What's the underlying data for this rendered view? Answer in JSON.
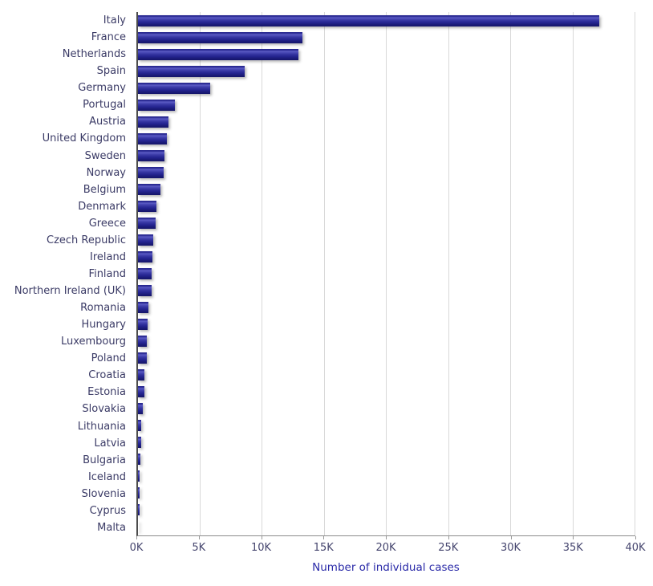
{
  "colors": {
    "bar_color": "#23238e",
    "bar_highlight": "#5c5cc4",
    "category_label_color": "#3b3b66",
    "tick_label_color": "#45456e",
    "axis_title_color": "#2a2aa8",
    "gridline_color": "#d9d9d9",
    "background": "#ffffff"
  },
  "chart_data": {
    "type": "bar",
    "orientation": "horizontal",
    "title": "",
    "xlabel": "Number of individual cases",
    "ylabel": "",
    "xlim": [
      0,
      40000
    ],
    "grid": true,
    "legend": false,
    "x_ticks": [
      "0K",
      "5K",
      "10K",
      "15K",
      "20K",
      "25K",
      "30K",
      "35K",
      "40K"
    ],
    "x_tick_values": [
      0,
      5000,
      10000,
      15000,
      20000,
      25000,
      30000,
      35000,
      40000
    ],
    "categories": [
      "Italy",
      "France",
      "Netherlands",
      "Spain",
      "Germany",
      "Portugal",
      "Austria",
      "United Kingdom",
      "Sweden",
      "Norway",
      "Belgium",
      "Denmark",
      "Greece",
      "Czech Republic",
      "Ireland",
      "Finland",
      "Northern Ireland (UK)",
      "Romania",
      "Hungary",
      "Luxembourg",
      "Poland",
      "Croatia",
      "Estonia",
      "Slovakia",
      "Lithuania",
      "Latvia",
      "Bulgaria",
      "Iceland",
      "Slovenia",
      "Cyprus",
      "Malta"
    ],
    "values": [
      37100,
      13200,
      12900,
      8600,
      5800,
      2950,
      2450,
      2300,
      2150,
      2050,
      1800,
      1500,
      1450,
      1200,
      1150,
      1100,
      1080,
      850,
      800,
      700,
      690,
      540,
      520,
      380,
      280,
      260,
      200,
      150,
      120,
      115,
      15
    ]
  }
}
